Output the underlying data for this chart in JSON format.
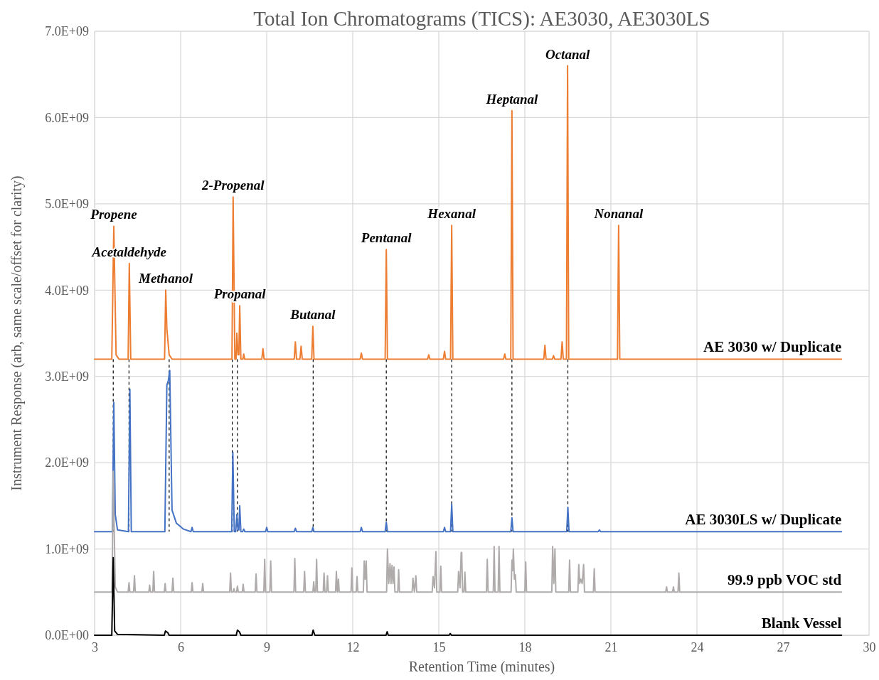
{
  "chart_data": {
    "type": "line",
    "title": "Total Ion Chromatograms (TICS):  AE3030, AE3030LS",
    "xlabel": "Retention Time (minutes)",
    "ylabel": "Instrument Response (arb, same scale/offset for clarity)",
    "xlim": [
      3,
      30
    ],
    "xticks": [
      3,
      6,
      9,
      12,
      15,
      18,
      21,
      24,
      27,
      30
    ],
    "ylim": [
      0,
      7000000000.0
    ],
    "yticks": [
      {
        "value": 0,
        "label": "0.0E+00"
      },
      {
        "value": 1000000000.0,
        "label": "1.0E+09"
      },
      {
        "value": 2000000000.0,
        "label": "2.0E+09"
      },
      {
        "value": 3000000000.0,
        "label": "3.0E+09"
      },
      {
        "value": 4000000000.0,
        "label": "4.0E+09"
      },
      {
        "value": 5000000000.0,
        "label": "5.0E+09"
      },
      {
        "value": 6000000000.0,
        "label": "6.0E+09"
      },
      {
        "value": 7000000000.0,
        "label": "7.0E+09"
      }
    ],
    "grid": true,
    "legend": false,
    "marker": "none",
    "line_style": "solid",
    "series": [
      {
        "name": "AE 3030 w/ Duplicate",
        "color": "#ed7d31",
        "x": [
          3.0,
          3.6,
          3.67,
          3.75,
          3.85,
          4.17,
          4.21,
          4.26,
          5.44,
          5.48,
          5.52,
          5.6,
          5.7,
          7.79,
          7.83,
          7.89,
          7.93,
          7.96,
          8.0,
          8.03,
          8.06,
          8.1,
          8.17,
          8.2,
          8.23,
          8.83,
          8.87,
          8.91,
          9.96,
          10.0,
          10.04,
          10.16,
          10.2,
          10.24,
          10.57,
          10.61,
          10.65,
          12.26,
          12.3,
          12.34,
          13.13,
          13.17,
          13.21,
          14.61,
          14.65,
          14.69,
          15.16,
          15.2,
          15.24,
          15.41,
          15.45,
          15.49,
          17.26,
          17.3,
          17.34,
          17.51,
          17.55,
          17.59,
          18.66,
          18.7,
          18.74,
          18.96,
          19.0,
          19.04,
          19.26,
          19.3,
          19.34,
          19.45,
          19.49,
          19.53,
          21.23,
          21.27,
          21.31,
          29.04
        ],
        "values": [
          3200000000.0,
          3200000000.0,
          4740000000.0,
          3250000000.0,
          3200000000.0,
          3200000000.0,
          4310000000.0,
          3200000000.0,
          3200000000.0,
          4000000000.0,
          3550000000.0,
          3250000000.0,
          3200000000.0,
          3200000000.0,
          5080000000.0,
          3200000000.0,
          3200000000.0,
          3500000000.0,
          3250000000.0,
          3250000000.0,
          3820000000.0,
          3200000000.0,
          3200000000.0,
          3260000000.0,
          3200000000.0,
          3200000000.0,
          3320000000.0,
          3200000000.0,
          3200000000.0,
          3400000000.0,
          3200000000.0,
          3200000000.0,
          3350000000.0,
          3200000000.0,
          3200000000.0,
          3580000000.0,
          3200000000.0,
          3200000000.0,
          3270000000.0,
          3200000000.0,
          3200000000.0,
          4470000000.0,
          3200000000.0,
          3200000000.0,
          3250000000.0,
          3200000000.0,
          3200000000.0,
          3290000000.0,
          3200000000.0,
          3200000000.0,
          4750000000.0,
          3200000000.0,
          3200000000.0,
          3260000000.0,
          3200000000.0,
          3200000000.0,
          6080000000.0,
          3200000000.0,
          3200000000.0,
          3360000000.0,
          3200000000.0,
          3200000000.0,
          3240000000.0,
          3200000000.0,
          3200000000.0,
          3400000000.0,
          3200000000.0,
          3200000000.0,
          6600000000.0,
          3200000000.0,
          3200000000.0,
          4750000000.0,
          3200000000.0,
          3200000000.0
        ]
      },
      {
        "name": "AE 3030LS w/ Duplicate",
        "color": "#4472c4",
        "x": [
          3.0,
          3.62,
          3.67,
          3.72,
          3.8,
          4.18,
          4.23,
          4.28,
          5.45,
          5.52,
          5.57,
          5.62,
          5.7,
          5.85,
          6.1,
          6.36,
          6.4,
          6.44,
          7.78,
          7.82,
          7.87,
          7.92,
          7.96,
          8.0,
          8.03,
          8.06,
          8.1,
          8.16,
          8.2,
          8.24,
          8.96,
          9.0,
          9.04,
          9.96,
          10.0,
          10.04,
          10.57,
          10.61,
          10.65,
          12.26,
          12.3,
          12.34,
          13.13,
          13.17,
          13.21,
          15.16,
          15.2,
          15.24,
          15.41,
          15.45,
          15.49,
          17.51,
          17.55,
          17.59,
          19.46,
          19.5,
          19.54,
          20.56,
          20.6,
          20.64,
          29.04
        ],
        "values": [
          1200000000.0,
          1200000000.0,
          2700000000.0,
          1400000000.0,
          1220000000.0,
          1200000000.0,
          2850000000.0,
          1200000000.0,
          1200000000.0,
          2900000000.0,
          2950000000.0,
          3070000000.0,
          1450000000.0,
          1300000000.0,
          1230000000.0,
          1200000000.0,
          1250000000.0,
          1200000000.0,
          1200000000.0,
          2120000000.0,
          1200000000.0,
          1200000000.0,
          1400000000.0,
          1220000000.0,
          1220000000.0,
          1500000000.0,
          1200000000.0,
          1200000000.0,
          1230000000.0,
          1200000000.0,
          1200000000.0,
          1250000000.0,
          1200000000.0,
          1200000000.0,
          1240000000.0,
          1200000000.0,
          1200000000.0,
          1250000000.0,
          1200000000.0,
          1200000000.0,
          1250000000.0,
          1200000000.0,
          1200000000.0,
          1310000000.0,
          1200000000.0,
          1200000000.0,
          1250000000.0,
          1200000000.0,
          1200000000.0,
          1520000000.0,
          1200000000.0,
          1200000000.0,
          1360000000.0,
          1200000000.0,
          1200000000.0,
          1480000000.0,
          1200000000.0,
          1200000000.0,
          1220000000.0,
          1200000000.0,
          1200000000.0
        ]
      },
      {
        "name": "99.9 ppb VOC std",
        "color": "#afabab",
        "x": [
          3.0,
          3.61,
          3.65,
          3.72,
          3.8,
          4.17,
          4.2,
          4.23,
          4.36,
          4.39,
          4.42,
          4.89,
          4.92,
          4.95,
          5.03,
          5.06,
          5.09,
          5.43,
          5.46,
          5.49,
          5.7,
          5.73,
          5.76,
          6.37,
          6.4,
          6.43,
          6.74,
          6.77,
          6.8,
          7.71,
          7.74,
          7.77,
          7.83,
          7.86,
          7.89,
          7.95,
          7.98,
          8.01,
          8.15,
          8.18,
          8.21,
          8.6,
          8.63,
          8.66,
          8.9,
          8.93,
          8.96,
          9.11,
          9.14,
          9.17,
          9.95,
          9.98,
          10.01,
          10.29,
          10.32,
          10.35,
          10.61,
          10.64,
          10.67,
          10.71,
          10.74,
          10.77,
          10.97,
          11.0,
          11.03,
          11.09,
          11.12,
          11.15,
          11.4,
          11.43,
          11.46,
          11.47,
          11.5,
          11.53,
          11.94,
          11.97,
          12.0,
          12.12,
          12.15,
          12.18,
          12.37,
          12.4,
          12.435,
          12.47,
          12.5,
          13.18,
          13.21,
          13.255,
          13.3,
          13.335,
          13.37,
          13.405,
          13.44,
          13.47,
          13.57,
          13.6,
          13.63,
          14.07,
          14.1,
          14.15,
          14.2,
          14.23,
          14.77,
          14.8,
          14.85,
          14.9,
          14.93,
          15.04,
          15.07,
          15.1,
          15.66,
          15.69,
          15.74,
          15.78,
          15.8,
          15.83,
          15.88,
          15.91,
          15.94,
          16.66,
          16.69,
          16.72,
          16.9,
          16.93,
          16.96,
          17.07,
          17.1,
          17.13,
          17.52,
          17.55,
          17.575,
          17.6,
          17.635,
          17.67,
          17.7,
          18.0,
          18.03,
          18.06,
          18.94,
          18.97,
          19.01,
          19.05,
          19.08,
          19.53,
          19.56,
          19.59,
          19.85,
          19.88,
          19.915,
          19.95,
          20.0,
          20.05,
          20.08,
          20.39,
          20.42,
          20.45,
          22.91,
          22.94,
          22.97,
          23.15,
          23.18,
          23.21,
          23.34,
          23.37,
          23.4,
          29.04
        ],
        "values": [
          500000000.0,
          500000000.0,
          1900000000.0,
          560000000.0,
          500000000.0,
          500000000.0,
          610000000.0,
          500000000.0,
          500000000.0,
          690000000.0,
          500000000.0,
          500000000.0,
          580000000.0,
          500000000.0,
          500000000.0,
          740000000.0,
          500000000.0,
          500000000.0,
          600000000.0,
          500000000.0,
          500000000.0,
          660000000.0,
          500000000.0,
          500000000.0,
          610000000.0,
          500000000.0,
          500000000.0,
          600000000.0,
          500000000.0,
          500000000.0,
          720000000.0,
          500000000.0,
          500000000.0,
          540000000.0,
          500000000.0,
          500000000.0,
          570000000.0,
          500000000.0,
          500000000.0,
          590000000.0,
          500000000.0,
          500000000.0,
          710000000.0,
          500000000.0,
          500000000.0,
          880000000.0,
          500000000.0,
          500000000.0,
          860000000.0,
          500000000.0,
          500000000.0,
          890000000.0,
          500000000.0,
          500000000.0,
          740000000.0,
          500000000.0,
          500000000.0,
          620000000.0,
          500000000.0,
          500000000.0,
          880000000.0,
          500000000.0,
          500000000.0,
          720000000.0,
          500000000.0,
          500000000.0,
          690000000.0,
          500000000.0,
          500000000.0,
          740000000.0,
          500000000.0,
          500000000.0,
          650000000.0,
          500000000.0,
          500000000.0,
          780000000.0,
          500000000.0,
          500000000.0,
          680000000.0,
          500000000.0,
          500000000.0,
          860000000.0,
          650000000.0,
          860000000.0,
          500000000.0,
          500000000.0,
          1000000000.0,
          600000000.0,
          830000000.0,
          600000000.0,
          810000000.0,
          600000000.0,
          790000000.0,
          500000000.0,
          500000000.0,
          760000000.0,
          500000000.0,
          500000000.0,
          660000000.0,
          500000000.0,
          690000000.0,
          500000000.0,
          500000000.0,
          680000000.0,
          550000000.0,
          970000000.0,
          500000000.0,
          500000000.0,
          800000000.0,
          500000000.0,
          500000000.0,
          740000000.0,
          550000000.0,
          960000000.0,
          960000000.0,
          500000000.0,
          500000000.0,
          730000000.0,
          500000000.0,
          500000000.0,
          880000000.0,
          500000000.0,
          500000000.0,
          1030000000.0,
          500000000.0,
          500000000.0,
          1030000000.0,
          500000000.0,
          500000000.0,
          870000000.0,
          750000000.0,
          1000000000.0,
          650000000.0,
          700000000.0,
          500000000.0,
          500000000.0,
          850000000.0,
          500000000.0,
          500000000.0,
          1030000000.0,
          600000000.0,
          1000000000.0,
          500000000.0,
          500000000.0,
          870000000.0,
          500000000.0,
          500000000.0,
          820000000.0,
          600000000.0,
          650000000.0,
          600000000.0,
          820000000.0,
          500000000.0,
          500000000.0,
          770000000.0,
          500000000.0,
          500000000.0,
          560000000.0,
          500000000.0,
          500000000.0,
          560000000.0,
          500000000.0,
          500000000.0,
          720000000.0,
          500000000.0,
          500000000.0
        ]
      },
      {
        "name": "Blank Vessel",
        "color": "#000000",
        "x": [
          3.0,
          3.6,
          3.65,
          3.7,
          3.8,
          5.43,
          5.47,
          5.55,
          5.6,
          7.94,
          7.98,
          8.05,
          8.1,
          10.58,
          10.62,
          10.68,
          13.16,
          13.2,
          13.24,
          15.36,
          15.4,
          15.44,
          29.04
        ],
        "values": [
          0,
          0,
          900000000.0,
          50000000.0,
          10000000.0,
          0,
          50000000.0,
          30000000.0,
          0,
          0,
          60000000.0,
          40000000.0,
          0,
          0,
          60000000.0,
          0,
          0,
          40000000.0,
          0,
          0,
          20000000.0,
          0,
          0
        ]
      }
    ],
    "ref_lines": [
      {
        "axis": "x",
        "value": 3.65,
        "color": "#000000",
        "line_style": "dashed"
      },
      {
        "axis": "x",
        "value": 4.2,
        "color": "#000000",
        "line_style": "dashed"
      },
      {
        "axis": "x",
        "value": 5.6,
        "color": "#000000",
        "line_style": "dashed"
      },
      {
        "axis": "x",
        "value": 7.8,
        "color": "#000000",
        "line_style": "dashed"
      },
      {
        "axis": "x",
        "value": 7.98,
        "color": "#000000",
        "line_style": "dashed"
      },
      {
        "axis": "x",
        "value": 10.62,
        "color": "#000000",
        "line_style": "dashed"
      },
      {
        "axis": "x",
        "value": 13.17,
        "color": "#000000",
        "line_style": "dashed"
      },
      {
        "axis": "x",
        "value": 15.45,
        "color": "#000000",
        "line_style": "dashed"
      },
      {
        "axis": "x",
        "value": 17.55,
        "color": "#000000",
        "line_style": "dashed"
      },
      {
        "axis": "x",
        "value": 19.5,
        "color": "#000000",
        "line_style": "dashed"
      }
    ],
    "annotations": [
      {
        "text": "Propene",
        "x": 3.67,
        "y": 4740000000.0
      },
      {
        "text": "Acetaldehyde",
        "x": 4.21,
        "y": 4310000000.0
      },
      {
        "text": "Methanol",
        "x": 5.48,
        "y": 4000000000.0
      },
      {
        "text": "2-Propenal",
        "x": 7.83,
        "y": 5080000000.0
      },
      {
        "text": "Propanal",
        "x": 8.06,
        "y": 3820000000.0
      },
      {
        "text": "Butanal",
        "x": 10.61,
        "y": 3580000000.0
      },
      {
        "text": "Pentanal",
        "x": 13.17,
        "y": 4470000000.0
      },
      {
        "text": "Hexanal",
        "x": 15.45,
        "y": 4750000000.0
      },
      {
        "text": "Heptanal",
        "x": 17.55,
        "y": 6080000000.0
      },
      {
        "text": "Octanal",
        "x": 19.49,
        "y": 6600000000.0
      },
      {
        "text": "Nonanal",
        "x": 21.27,
        "y": 4750000000.0
      }
    ]
  }
}
